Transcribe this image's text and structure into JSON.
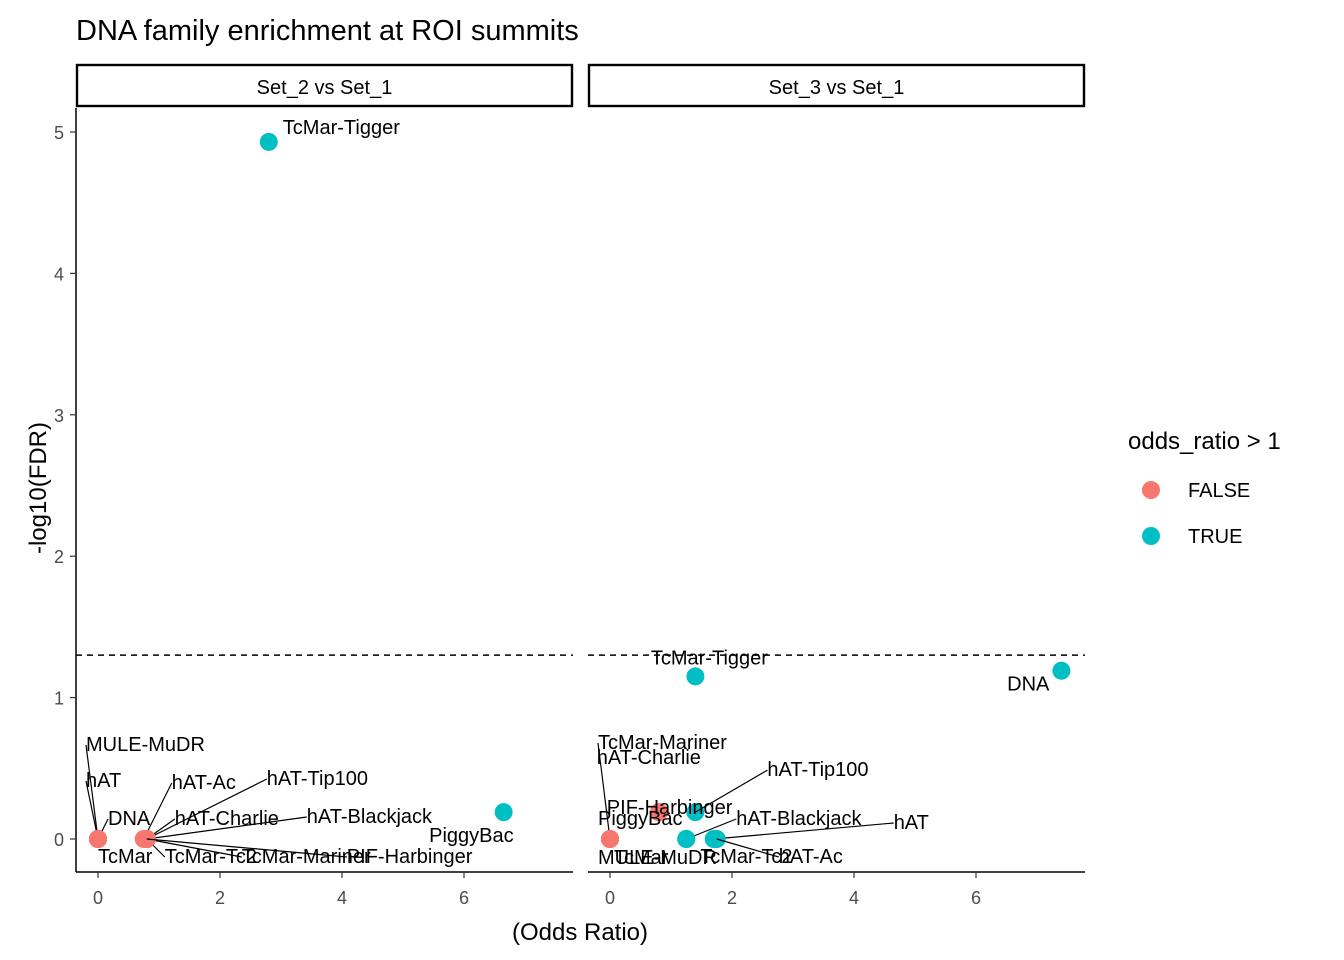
{
  "chart_data": {
    "type": "scatter",
    "title": "DNA family enrichment at ROI summits",
    "xlabel": "(Odds Ratio)",
    "ylabel": "-log10(FDR)",
    "xlim": [
      -0.35,
      7.7
    ],
    "ylim": [
      -0.24,
      5.2
    ],
    "x_ticks": [
      "0",
      "2",
      "4",
      "6"
    ],
    "y_ticks": [
      "0",
      "1",
      "2",
      "3",
      "4",
      "5"
    ],
    "threshold_y": 1.3,
    "legend": {
      "title": "odds_ratio > 1",
      "entries": [
        {
          "label": "FALSE",
          "color": "#F8766D"
        },
        {
          "label": "TRUE",
          "color": "#00BFC4"
        }
      ],
      "placement": "right"
    },
    "facets": [
      {
        "label": "Set_2 vs Set_1",
        "points": [
          {
            "name": "TcMar-Tigger",
            "x": 2.8,
            "y": 4.93,
            "enriched": true
          },
          {
            "name": "PiggyBac",
            "x": 6.65,
            "y": 0.19,
            "enriched": true
          },
          {
            "name": "MULE-MuDR",
            "x": 0.0,
            "y": 0.0,
            "enriched": false
          },
          {
            "name": "hAT",
            "x": 0.0,
            "y": 0.0,
            "enriched": false
          },
          {
            "name": "DNA",
            "x": 0.0,
            "y": 0.0,
            "enriched": false
          },
          {
            "name": "TcMar",
            "x": 0.0,
            "y": 0.0,
            "enriched": false
          },
          {
            "name": "hAT-Ac",
            "x": 0.75,
            "y": 0.0,
            "enriched": false
          },
          {
            "name": "hAT-Tip100",
            "x": 0.8,
            "y": 0.0,
            "enriched": false
          },
          {
            "name": "hAT-Charlie",
            "x": 0.8,
            "y": 0.0,
            "enriched": false
          },
          {
            "name": "hAT-Blackjack",
            "x": 0.8,
            "y": 0.0,
            "enriched": false
          },
          {
            "name": "TcMar-Tc2",
            "x": 0.8,
            "y": 0.0,
            "enriched": false
          },
          {
            "name": "TcMar-Mariner",
            "x": 0.8,
            "y": 0.0,
            "enriched": false
          },
          {
            "name": "PIF-Harbinger",
            "x": 0.8,
            "y": 0.0,
            "enriched": false
          }
        ]
      },
      {
        "label": "Set_3 vs Set_1",
        "points": [
          {
            "name": "TcMar-Tigger",
            "x": 1.4,
            "y": 1.15,
            "enriched": true
          },
          {
            "name": "DNA",
            "x": 7.4,
            "y": 1.19,
            "enriched": true
          },
          {
            "name": "hAT-Tip100",
            "x": 1.4,
            "y": 0.19,
            "enriched": true
          },
          {
            "name": "hAT-Blackjack",
            "x": 1.25,
            "y": 0.0,
            "enriched": true
          },
          {
            "name": "hAT",
            "x": 1.7,
            "y": 0.0,
            "enriched": true
          },
          {
            "name": "hAT-Ac",
            "x": 1.75,
            "y": 0.0,
            "enriched": true
          },
          {
            "name": "TcMar-Tc2",
            "x": 1.25,
            "y": 0.0,
            "enriched": true
          },
          {
            "name": "TcMar-Mariner",
            "x": 0.0,
            "y": 0.0,
            "enriched": false
          },
          {
            "name": "hAT-Charlie",
            "x": 0.8,
            "y": 0.19,
            "enriched": false
          },
          {
            "name": "PIF-Harbinger",
            "x": 0.8,
            "y": 0.19,
            "enriched": false
          },
          {
            "name": "PiggyBac",
            "x": 0.0,
            "y": 0.0,
            "enriched": false
          },
          {
            "name": "MULE-MuDR",
            "x": 0.0,
            "y": 0.0,
            "enriched": false
          },
          {
            "name": "TcMar",
            "x": 0.0,
            "y": 0.0,
            "enriched": false
          }
        ]
      }
    ]
  }
}
